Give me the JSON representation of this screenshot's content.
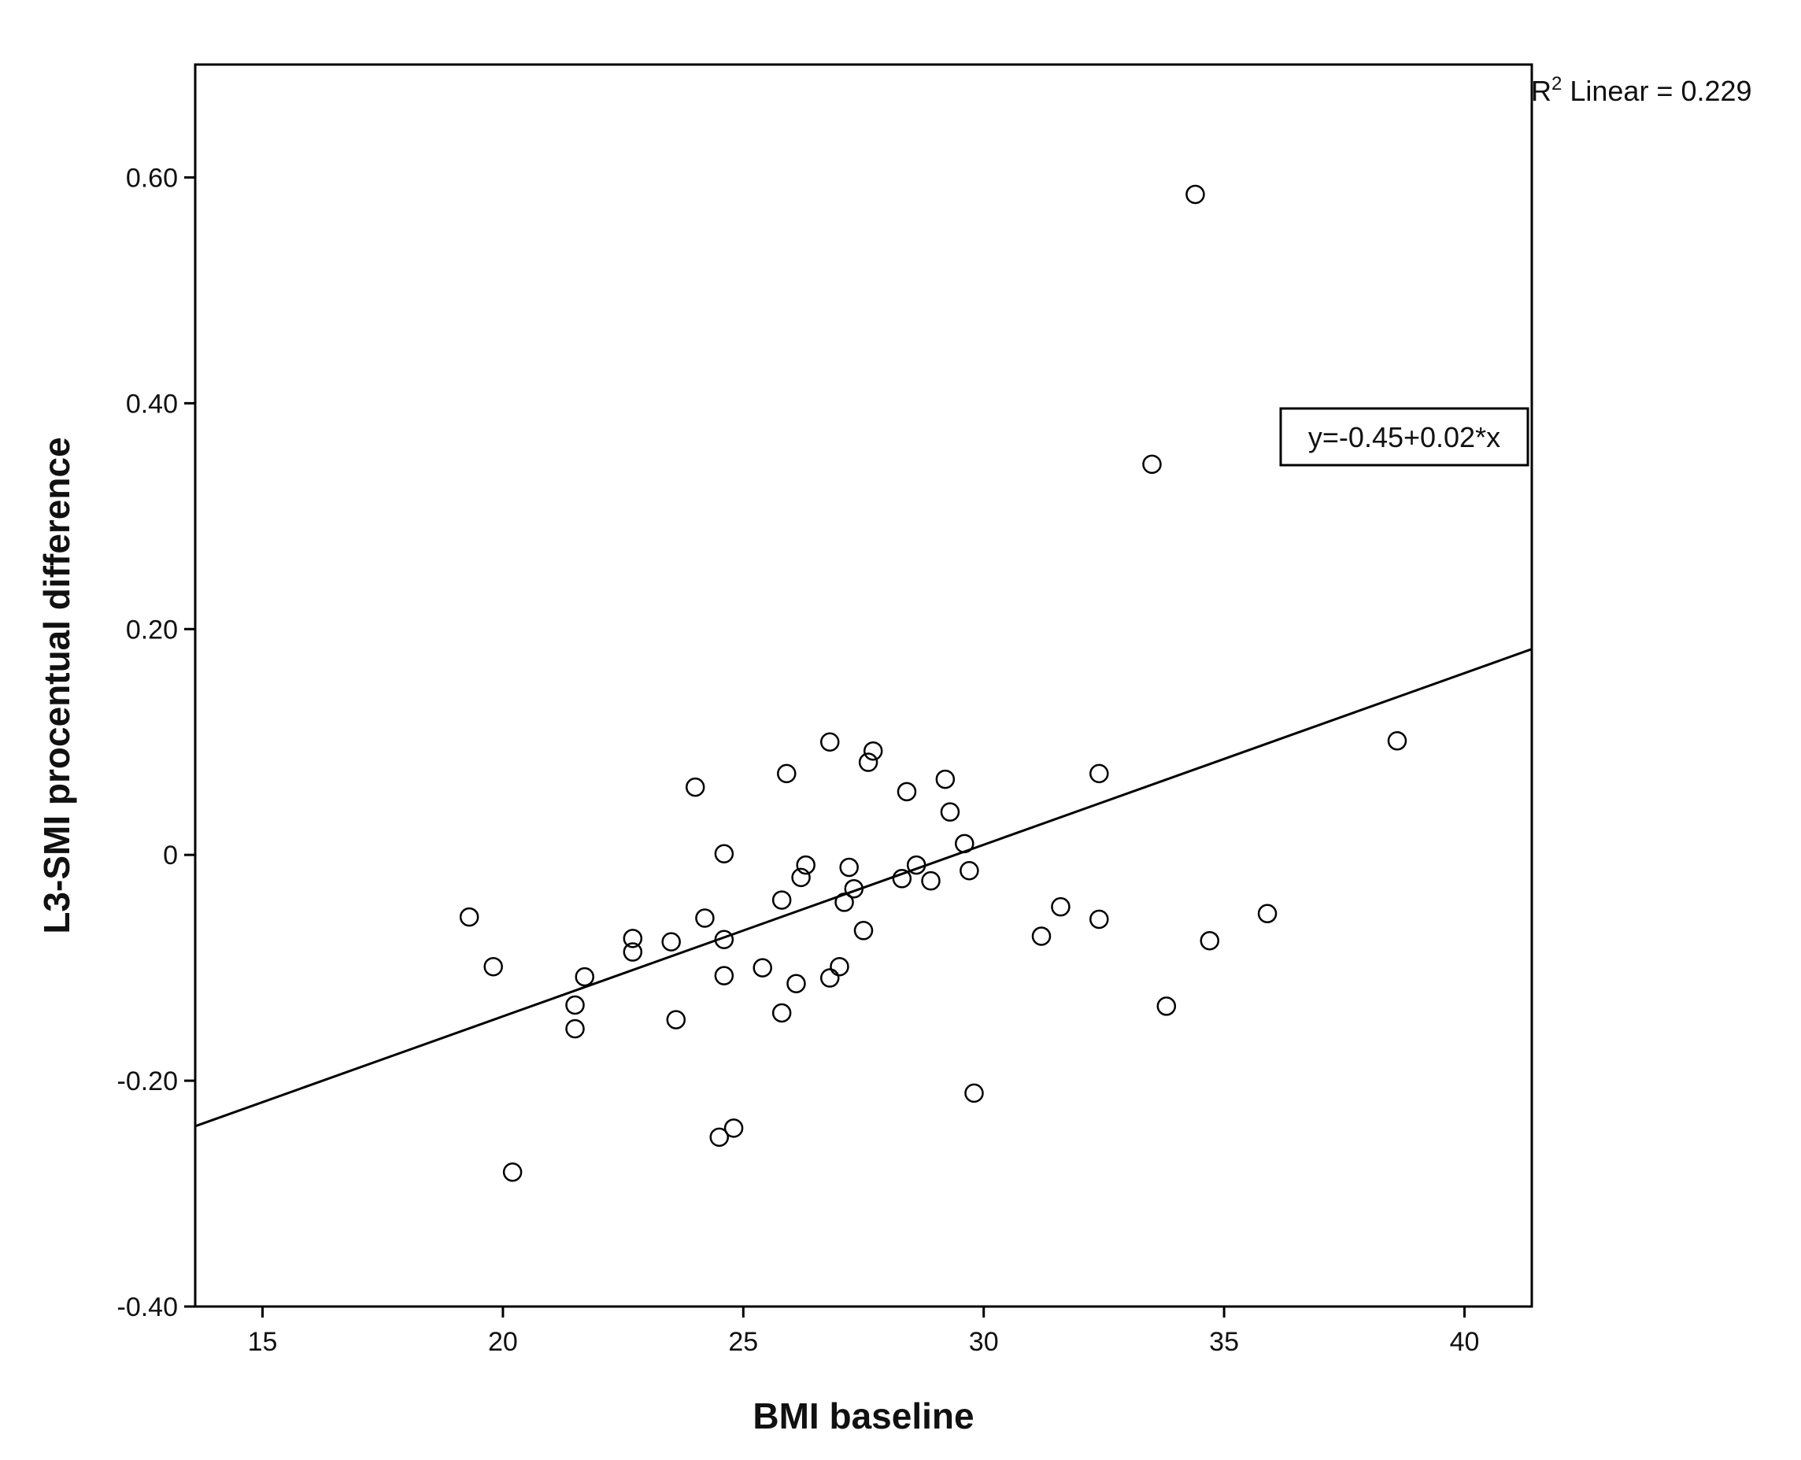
{
  "chart_data": {
    "type": "scatter",
    "title": "",
    "xlabel": "BMI baseline",
    "ylabel": "L3-SMI procentual difference",
    "xlim": [
      13.6,
      41.4
    ],
    "ylim": [
      -0.4,
      0.7
    ],
    "x_ticks": [
      15,
      20,
      25,
      30,
      35,
      40
    ],
    "x_tick_labels": [
      "15",
      "20",
      "25",
      "30",
      "35",
      "40"
    ],
    "y_ticks": [
      -0.4,
      -0.2,
      0,
      0.2,
      0.4,
      0.6
    ],
    "y_tick_labels": [
      "-0.40",
      "-0.20",
      "0",
      "0.20",
      "0.40",
      "0.60"
    ],
    "r2_label": "R",
    "r2_sup": "2",
    "r2_text": " Linear = 0.229",
    "fit_equation": "y=-0.45+0.02*x",
    "fit_line": {
      "intercept": -0.447,
      "slope": 0.0152
    },
    "grid": false,
    "legend": "none",
    "marker": "open-circle",
    "points": [
      {
        "x": 19.3,
        "y": -0.055
      },
      {
        "x": 19.8,
        "y": -0.099
      },
      {
        "x": 20.2,
        "y": -0.281
      },
      {
        "x": 21.5,
        "y": -0.133
      },
      {
        "x": 21.5,
        "y": -0.154
      },
      {
        "x": 21.7,
        "y": -0.108
      },
      {
        "x": 22.7,
        "y": -0.074
      },
      {
        "x": 22.7,
        "y": -0.086
      },
      {
        "x": 23.5,
        "y": -0.077
      },
      {
        "x": 23.6,
        "y": -0.146
      },
      {
        "x": 24.0,
        "y": 0.06
      },
      {
        "x": 24.2,
        "y": -0.056
      },
      {
        "x": 24.5,
        "y": -0.25
      },
      {
        "x": 24.6,
        "y": 0.001
      },
      {
        "x": 24.6,
        "y": -0.075
      },
      {
        "x": 24.6,
        "y": -0.107
      },
      {
        "x": 24.8,
        "y": -0.242
      },
      {
        "x": 25.4,
        "y": -0.1
      },
      {
        "x": 25.8,
        "y": -0.04
      },
      {
        "x": 25.8,
        "y": -0.14
      },
      {
        "x": 25.9,
        "y": 0.072
      },
      {
        "x": 26.1,
        "y": -0.114
      },
      {
        "x": 26.2,
        "y": -0.02
      },
      {
        "x": 26.3,
        "y": -0.009
      },
      {
        "x": 26.8,
        "y": 0.1
      },
      {
        "x": 26.8,
        "y": -0.109
      },
      {
        "x": 27.0,
        "y": -0.099
      },
      {
        "x": 27.1,
        "y": -0.042
      },
      {
        "x": 27.2,
        "y": -0.011
      },
      {
        "x": 27.3,
        "y": -0.03
      },
      {
        "x": 27.5,
        "y": -0.067
      },
      {
        "x": 27.6,
        "y": 0.082
      },
      {
        "x": 27.7,
        "y": 0.092
      },
      {
        "x": 28.3,
        "y": -0.021
      },
      {
        "x": 28.4,
        "y": 0.056
      },
      {
        "x": 28.6,
        "y": -0.009
      },
      {
        "x": 28.9,
        "y": -0.023
      },
      {
        "x": 29.2,
        "y": 0.067
      },
      {
        "x": 29.3,
        "y": 0.038
      },
      {
        "x": 29.6,
        "y": 0.01
      },
      {
        "x": 29.7,
        "y": -0.014
      },
      {
        "x": 29.8,
        "y": -0.211
      },
      {
        "x": 31.2,
        "y": -0.072
      },
      {
        "x": 31.6,
        "y": -0.046
      },
      {
        "x": 32.4,
        "y": 0.072
      },
      {
        "x": 32.4,
        "y": -0.057
      },
      {
        "x": 33.5,
        "y": 0.346
      },
      {
        "x": 33.8,
        "y": -0.134
      },
      {
        "x": 34.4,
        "y": 0.585
      },
      {
        "x": 34.7,
        "y": -0.076
      },
      {
        "x": 35.9,
        "y": -0.052
      },
      {
        "x": 38.6,
        "y": 0.101
      }
    ]
  }
}
